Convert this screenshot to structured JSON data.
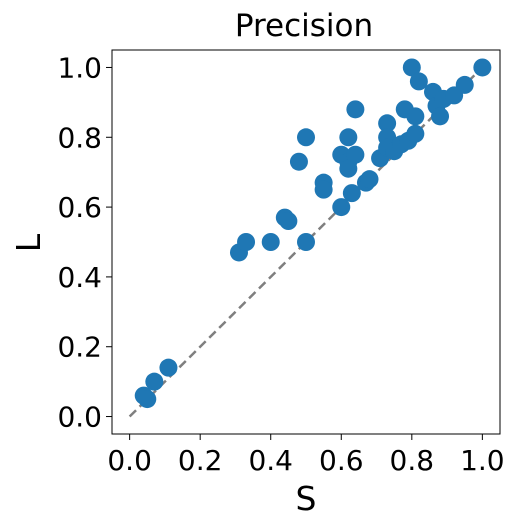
{
  "chart_data": {
    "type": "scatter",
    "title": "Precision",
    "xlabel": "S",
    "ylabel": "L",
    "xlim": [
      -0.05,
      1.05
    ],
    "ylim": [
      -0.05,
      1.05
    ],
    "xticks": [
      "0.0",
      "0.2",
      "0.4",
      "0.6",
      "0.8",
      "1.0"
    ],
    "yticks": [
      "0.0",
      "0.2",
      "0.4",
      "0.6",
      "0.8",
      "1.0"
    ],
    "grid": false,
    "legend": "none",
    "colors": {
      "marker": "#1f77b4",
      "reference_line": "#7f7f7f"
    },
    "reference_line": {
      "style": "dashed",
      "from": [
        0.0,
        0.0
      ],
      "to": [
        1.0,
        1.0
      ]
    },
    "points": [
      {
        "x": 0.04,
        "y": 0.06
      },
      {
        "x": 0.05,
        "y": 0.05
      },
      {
        "x": 0.07,
        "y": 0.1
      },
      {
        "x": 0.11,
        "y": 0.14
      },
      {
        "x": 0.31,
        "y": 0.47
      },
      {
        "x": 0.33,
        "y": 0.5
      },
      {
        "x": 0.4,
        "y": 0.5
      },
      {
        "x": 0.44,
        "y": 0.57
      },
      {
        "x": 0.45,
        "y": 0.56
      },
      {
        "x": 0.48,
        "y": 0.73
      },
      {
        "x": 0.5,
        "y": 0.8
      },
      {
        "x": 0.5,
        "y": 0.5
      },
      {
        "x": 0.55,
        "y": 0.67
      },
      {
        "x": 0.55,
        "y": 0.65
      },
      {
        "x": 0.6,
        "y": 0.6
      },
      {
        "x": 0.6,
        "y": 0.75
      },
      {
        "x": 0.62,
        "y": 0.8
      },
      {
        "x": 0.62,
        "y": 0.73
      },
      {
        "x": 0.62,
        "y": 0.71
      },
      {
        "x": 0.63,
        "y": 0.64
      },
      {
        "x": 0.64,
        "y": 0.88
      },
      {
        "x": 0.64,
        "y": 0.75
      },
      {
        "x": 0.67,
        "y": 0.67
      },
      {
        "x": 0.68,
        "y": 0.68
      },
      {
        "x": 0.71,
        "y": 0.74
      },
      {
        "x": 0.73,
        "y": 0.84
      },
      {
        "x": 0.73,
        "y": 0.8
      },
      {
        "x": 0.73,
        "y": 0.77
      },
      {
        "x": 0.75,
        "y": 0.76
      },
      {
        "x": 0.77,
        "y": 0.78
      },
      {
        "x": 0.78,
        "y": 0.88
      },
      {
        "x": 0.79,
        "y": 0.79
      },
      {
        "x": 0.8,
        "y": 1.0
      },
      {
        "x": 0.81,
        "y": 0.81
      },
      {
        "x": 0.82,
        "y": 0.96
      },
      {
        "x": 0.81,
        "y": 0.86
      },
      {
        "x": 0.86,
        "y": 0.93
      },
      {
        "x": 0.87,
        "y": 0.89
      },
      {
        "x": 0.88,
        "y": 0.86
      },
      {
        "x": 0.89,
        "y": 0.91
      },
      {
        "x": 0.92,
        "y": 0.92
      },
      {
        "x": 0.95,
        "y": 0.95
      },
      {
        "x": 1.0,
        "y": 1.0
      }
    ]
  }
}
